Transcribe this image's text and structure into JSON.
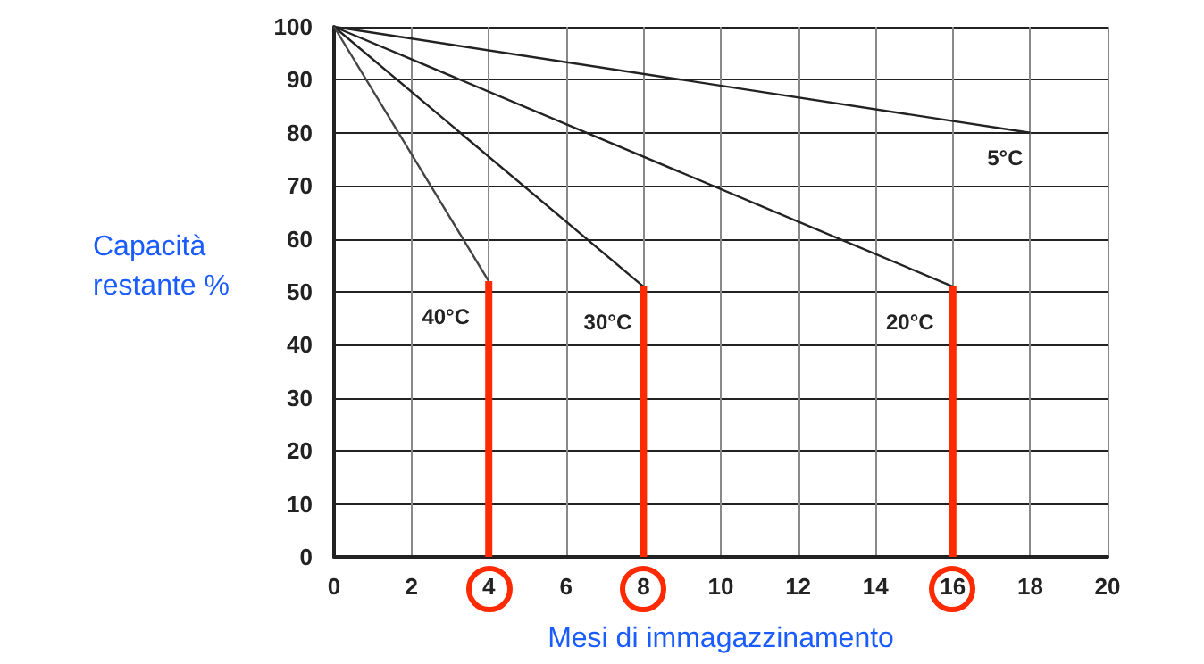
{
  "chart_data": {
    "type": "line",
    "xlabel": "Mesi di immagazzinamento",
    "ylabel": "Capacità\nrestante %",
    "xlim": [
      0,
      20
    ],
    "xticks": [
      0,
      2,
      4,
      6,
      8,
      10,
      12,
      14,
      16,
      18,
      20
    ],
    "ylim": [
      0,
      100
    ],
    "yticks": [
      0,
      10,
      20,
      30,
      40,
      50,
      60,
      70,
      80,
      90,
      100
    ],
    "grid": true,
    "legend": false,
    "marker": "none",
    "series": [
      {
        "name": "5°C",
        "color": "#222222",
        "x": [
          0,
          18
        ],
        "values": [
          100,
          80
        ]
      },
      {
        "name": "20°C",
        "color": "#222222",
        "x": [
          0,
          16
        ],
        "values": [
          100,
          51
        ]
      },
      {
        "name": "30°C",
        "color": "#222222",
        "x": [
          0,
          8
        ],
        "values": [
          100,
          51
        ]
      },
      {
        "name": "40°C",
        "color": "#444444",
        "x": [
          0,
          4
        ],
        "values": [
          100,
          52
        ]
      },
      {
        "color": "#ff2a00",
        "x": [
          4,
          4
        ],
        "values": [
          52,
          0
        ]
      },
      {
        "color": "#ff2a00",
        "x": [
          8,
          8
        ],
        "values": [
          51,
          0
        ]
      },
      {
        "color": "#ff2a00",
        "x": [
          16,
          16
        ],
        "values": [
          51,
          0
        ]
      }
    ]
  }
}
